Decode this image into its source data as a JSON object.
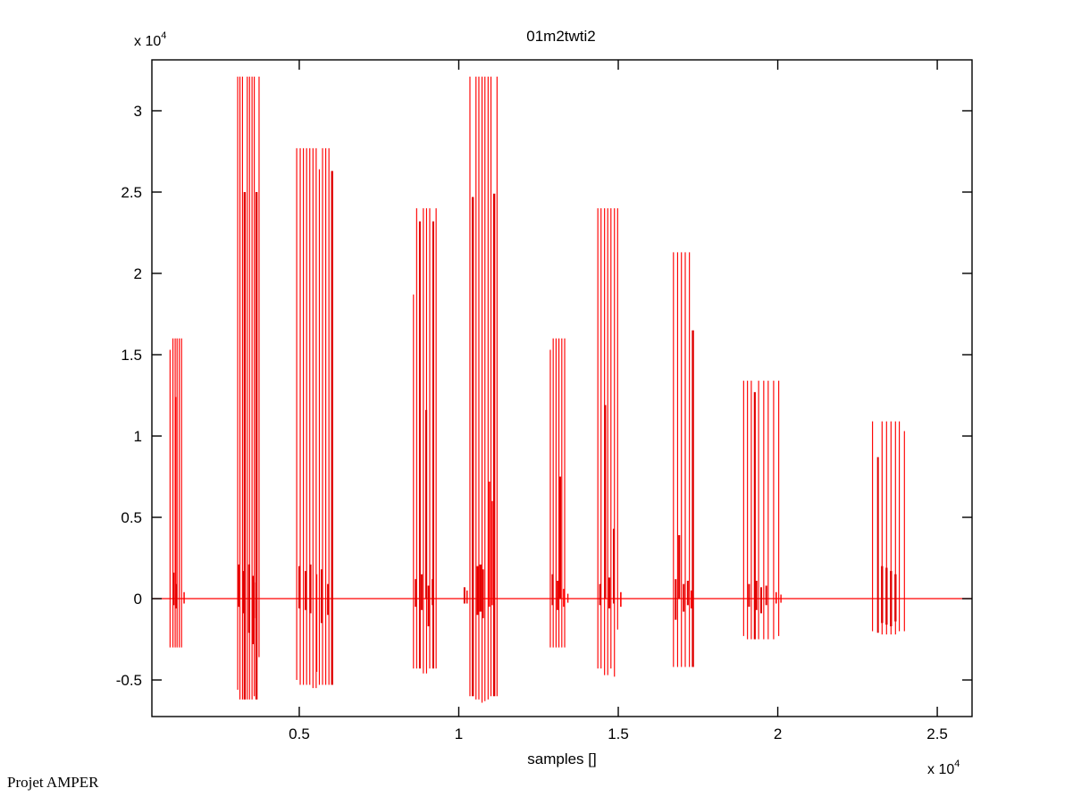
{
  "figure": {
    "title": "01m2twti2",
    "xlabel": "samples []",
    "scale_prefix": "x 10",
    "scale_exp": "4",
    "watermark": "Projet AMPER"
  },
  "chart_data": {
    "type": "line",
    "title": "01m2twti2",
    "xlabel": "samples []",
    "ylabel": "",
    "x_scale_label": "x 10^4",
    "y_scale_label": "x 10^4",
    "legend": "none",
    "grid": false,
    "box": true,
    "tick_direction": "in",
    "series_color": "#ff0000",
    "thick_color": "#e00000",
    "axis_color": "#000000",
    "xlim": [
      380,
      26090
    ],
    "ylim": [
      -7250,
      33130
    ],
    "x_ticks": [
      5000,
      10000,
      15000,
      20000,
      25000
    ],
    "x_tick_labels": [
      "0.5",
      "1",
      "1.5",
      "2",
      "2.5"
    ],
    "y_ticks": [
      30000,
      25000,
      20000,
      15000,
      10000,
      5000,
      0,
      -5000
    ],
    "y_tick_labels": [
      "3",
      "2.5",
      "2",
      "1.5",
      "1",
      "0.5",
      "0",
      "-0.5"
    ],
    "baseline": 0,
    "description": "Speech waveform: vertical spike bursts [x_sample, top, bottom, optional_linewidth]",
    "bursts": [
      {
        "name": "burst-1",
        "spikes": [
          [
            950,
            15300,
            -3000
          ],
          [
            1040,
            16000,
            -3000
          ],
          [
            1110,
            16000,
            -3000
          ],
          [
            1170,
            16000,
            -3000
          ],
          [
            1240,
            16000,
            -3000
          ],
          [
            1310,
            16000,
            -3000
          ],
          [
            1120,
            12400,
            0,
            1.8
          ],
          [
            1060,
            1600,
            -400,
            2
          ],
          [
            1150,
            900,
            -600,
            2
          ],
          [
            1390,
            400,
            -300,
            1.5
          ]
        ]
      },
      {
        "name": "burst-2",
        "spikes": [
          [
            3070,
            32100,
            -5600
          ],
          [
            3140,
            32100,
            -6200
          ],
          [
            3220,
            32100,
            -6200
          ],
          [
            3290,
            25000,
            -6200,
            2.4
          ],
          [
            3370,
            32100,
            -6200
          ],
          [
            3440,
            32100,
            -6200
          ],
          [
            3520,
            32100,
            -6200
          ],
          [
            3590,
            32100,
            -6000
          ],
          [
            3660,
            25000,
            -6200,
            2.4
          ],
          [
            3740,
            32100,
            -3600
          ],
          [
            3100,
            2100,
            -500,
            2
          ],
          [
            3250,
            1700,
            -900,
            2
          ],
          [
            3430,
            2100,
            -2100,
            2.2
          ],
          [
            3560,
            1400,
            -2800,
            2
          ],
          [
            3650,
            1000,
            -1200,
            2
          ]
        ]
      },
      {
        "name": "burst-3",
        "spikes": [
          [
            4920,
            27700,
            -5000
          ],
          [
            5030,
            27700,
            -5300
          ],
          [
            5130,
            27700,
            -5300
          ],
          [
            5230,
            27700,
            -5300
          ],
          [
            5330,
            27700,
            -5300
          ],
          [
            5430,
            27700,
            -5500
          ],
          [
            5530,
            27700,
            -5500
          ],
          [
            5630,
            26400,
            -5300
          ],
          [
            5730,
            27700,
            -5300
          ],
          [
            5830,
            27700,
            -5300
          ],
          [
            5930,
            27700,
            -5300
          ],
          [
            6030,
            26300,
            -5300,
            2.4
          ],
          [
            5000,
            2000,
            -600,
            2
          ],
          [
            5200,
            1700,
            -700,
            2
          ],
          [
            5350,
            2100,
            -900,
            2.2
          ],
          [
            5550,
            1500,
            -4500
          ],
          [
            5700,
            1800,
            -1500,
            2
          ],
          [
            5900,
            900,
            -1000,
            2
          ]
        ]
      },
      {
        "name": "burst-4",
        "spikes": [
          [
            8580,
            18700,
            -4300
          ],
          [
            8680,
            24000,
            -4300
          ],
          [
            8780,
            23200,
            -4300,
            2
          ],
          [
            8890,
            24000,
            -4600
          ],
          [
            8990,
            24000,
            -4600
          ],
          [
            9090,
            24000,
            -4300
          ],
          [
            9200,
            23200,
            -4300,
            2
          ],
          [
            9290,
            24000,
            -4300
          ],
          [
            8980,
            11600,
            0,
            2.2
          ],
          [
            8650,
            1200,
            -500,
            2
          ],
          [
            8840,
            1500,
            -700,
            2
          ],
          [
            9050,
            800,
            -1700,
            2
          ],
          [
            9180,
            1200,
            -400,
            2
          ]
        ]
      },
      {
        "name": "burst-5",
        "spikes": [
          [
            10350,
            32100,
            -6000
          ],
          [
            10440,
            24700,
            -6000,
            2.4
          ],
          [
            10540,
            32100,
            -6200
          ],
          [
            10630,
            32100,
            -6200
          ],
          [
            10730,
            32100,
            -6400
          ],
          [
            10820,
            32100,
            -6300
          ],
          [
            10920,
            32100,
            -6200
          ],
          [
            11010,
            32100,
            -6000
          ],
          [
            11110,
            24900,
            -6000,
            2.4
          ],
          [
            11200,
            32100,
            -6000
          ],
          [
            10960,
            7200,
            -500,
            1.6
          ],
          [
            11050,
            6000,
            -400,
            1.4
          ],
          [
            10590,
            2000,
            -1000,
            2.4
          ],
          [
            10180,
            700,
            -300,
            2
          ],
          [
            10260,
            500,
            -300,
            1.5
          ],
          [
            10680,
            2100,
            -800,
            2.4
          ],
          [
            10760,
            1800,
            -1200,
            2
          ]
        ]
      },
      {
        "name": "burst-6",
        "spikes": [
          [
            12870,
            15300,
            -3000
          ],
          [
            12960,
            16000,
            -3000
          ],
          [
            13050,
            16000,
            -3000
          ],
          [
            13140,
            16000,
            -3000
          ],
          [
            13230,
            16000,
            -3000
          ],
          [
            13320,
            16000,
            -3000
          ],
          [
            13180,
            7500,
            0,
            2.2
          ],
          [
            12940,
            1500,
            -400,
            2
          ],
          [
            13100,
            1100,
            -700,
            2
          ],
          [
            13290,
            600,
            -500,
            1.6
          ],
          [
            13420,
            300,
            -250,
            1.4
          ]
        ]
      },
      {
        "name": "burst-7",
        "spikes": [
          [
            14360,
            24000,
            -4300
          ],
          [
            14460,
            24000,
            -4300
          ],
          [
            14570,
            24000,
            -4700
          ],
          [
            14670,
            24000,
            -4700
          ],
          [
            14770,
            24000,
            -4300
          ],
          [
            14880,
            24000,
            -4800
          ],
          [
            14980,
            24000,
            -1900
          ],
          [
            14590,
            11900,
            0,
            2.2
          ],
          [
            14860,
            4300,
            -300,
            2
          ],
          [
            14430,
            900,
            -400,
            2
          ],
          [
            14720,
            1300,
            -600,
            2.2
          ],
          [
            15080,
            400,
            -500,
            1.6
          ]
        ]
      },
      {
        "name": "burst-8",
        "spikes": [
          [
            16730,
            21300,
            -4200
          ],
          [
            16860,
            21300,
            -4200
          ],
          [
            16980,
            21300,
            -4200
          ],
          [
            17100,
            21300,
            -4200
          ],
          [
            17230,
            21300,
            -4200
          ],
          [
            17340,
            16500,
            -4200,
            2.4
          ],
          [
            16910,
            3900,
            0,
            2.2
          ],
          [
            16800,
            1200,
            -1300,
            2
          ],
          [
            17050,
            900,
            -800,
            2
          ],
          [
            17180,
            1100,
            -400,
            2
          ],
          [
            17290,
            500,
            -600,
            1.6
          ]
        ]
      },
      {
        "name": "burst-9",
        "spikes": [
          [
            18930,
            13400,
            -2300
          ],
          [
            19050,
            13400,
            -2500
          ],
          [
            19170,
            13400,
            -2500
          ],
          [
            19280,
            12700,
            -2500,
            2.2
          ],
          [
            19400,
            13400,
            -2500
          ],
          [
            19560,
            13400,
            -2500
          ],
          [
            19700,
            13400,
            -2500
          ],
          [
            19870,
            13400,
            -2500
          ],
          [
            20030,
            13400,
            -2300
          ],
          [
            19100,
            900,
            -500,
            2
          ],
          [
            19330,
            1100,
            -700,
            2.2
          ],
          [
            19480,
            700,
            -900,
            2
          ],
          [
            19640,
            800,
            -400,
            2
          ],
          [
            19950,
            400,
            -300,
            1.6
          ],
          [
            20100,
            250,
            -250,
            1.4
          ]
        ]
      },
      {
        "name": "burst-10",
        "spikes": [
          [
            22970,
            10900,
            -2000
          ],
          [
            23140,
            8700,
            -2100,
            2
          ],
          [
            23270,
            10900,
            -2200
          ],
          [
            23410,
            10900,
            -2200
          ],
          [
            23550,
            10900,
            -2200
          ],
          [
            23690,
            10900,
            -2200
          ],
          [
            23810,
            10900,
            -2000
          ],
          [
            23970,
            10300,
            -2000
          ],
          [
            23270,
            2000,
            -1500,
            2.4
          ],
          [
            23410,
            1900,
            -1600,
            2.4
          ],
          [
            23550,
            1700,
            -1700,
            2.4
          ],
          [
            23690,
            1500,
            -1400,
            2.4
          ]
        ]
      }
    ]
  }
}
